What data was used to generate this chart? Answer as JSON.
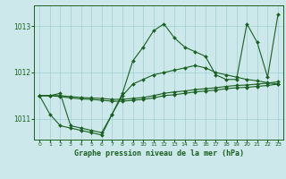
{
  "title": "Graphe pression niveau de la mer (hPa)",
  "background_color": "#cce8ea",
  "grid_color": "#9fcfcf",
  "line_color": "#1a6020",
  "xlim": [
    -0.5,
    23.5
  ],
  "ylim": [
    1010.55,
    1013.45
  ],
  "yticks": [
    1011,
    1012,
    1013
  ],
  "xticks": [
    0,
    1,
    2,
    3,
    4,
    5,
    6,
    7,
    8,
    9,
    10,
    11,
    12,
    13,
    14,
    15,
    16,
    17,
    18,
    19,
    20,
    21,
    22,
    23
  ],
  "series": [
    {
      "x": [
        0,
        1,
        2,
        3,
        4,
        5,
        6,
        7,
        8,
        9,
        10,
        11,
        12,
        13,
        14,
        15,
        16,
        17,
        18,
        19,
        20,
        21,
        22,
        23
      ],
      "y": [
        1011.5,
        1011.5,
        1011.55,
        1010.85,
        1010.8,
        1010.75,
        1010.7,
        1011.1,
        1011.55,
        1012.25,
        1012.55,
        1012.9,
        1013.05,
        1012.75,
        1012.55,
        1012.45,
        1012.35,
        1011.95,
        1011.85,
        1011.85,
        1013.05,
        1012.65,
        1011.9,
        1013.25
      ]
    },
    {
      "x": [
        0,
        1,
        2,
        3,
        4,
        5,
        6,
        7,
        8,
        9,
        10,
        11,
        12,
        13,
        14,
        15,
        16,
        17,
        18,
        19,
        20,
        21,
        22,
        23
      ],
      "y": [
        1011.5,
        1011.1,
        1010.85,
        1010.8,
        1010.75,
        1010.7,
        1010.65,
        1011.1,
        1011.5,
        1011.75,
        1011.85,
        1011.95,
        1012.0,
        1012.05,
        1012.1,
        1012.15,
        1012.1,
        1012.0,
        1011.95,
        1011.9,
        1011.85,
        1011.82,
        1011.78,
        1011.75
      ]
    },
    {
      "x": [
        0,
        1,
        2,
        3,
        4,
        5,
        6,
        7,
        8,
        9,
        10,
        11,
        12,
        13,
        14,
        15,
        16,
        17,
        18,
        19,
        20,
        21,
        22,
        23
      ],
      "y": [
        1011.5,
        1011.5,
        1011.48,
        1011.45,
        1011.43,
        1011.42,
        1011.4,
        1011.38,
        1011.38,
        1011.4,
        1011.42,
        1011.45,
        1011.5,
        1011.52,
        1011.55,
        1011.58,
        1011.6,
        1011.62,
        1011.65,
        1011.67,
        1011.68,
        1011.7,
        1011.72,
        1011.75
      ]
    },
    {
      "x": [
        0,
        1,
        2,
        3,
        4,
        5,
        6,
        7,
        8,
        9,
        10,
        11,
        12,
        13,
        14,
        15,
        16,
        17,
        18,
        19,
        20,
        21,
        22,
        23
      ],
      "y": [
        1011.5,
        1011.5,
        1011.5,
        1011.48,
        1011.46,
        1011.45,
        1011.44,
        1011.42,
        1011.42,
        1011.44,
        1011.46,
        1011.5,
        1011.55,
        1011.58,
        1011.6,
        1011.63,
        1011.65,
        1011.67,
        1011.7,
        1011.72,
        1011.73,
        1011.75,
        1011.77,
        1011.8
      ]
    }
  ]
}
